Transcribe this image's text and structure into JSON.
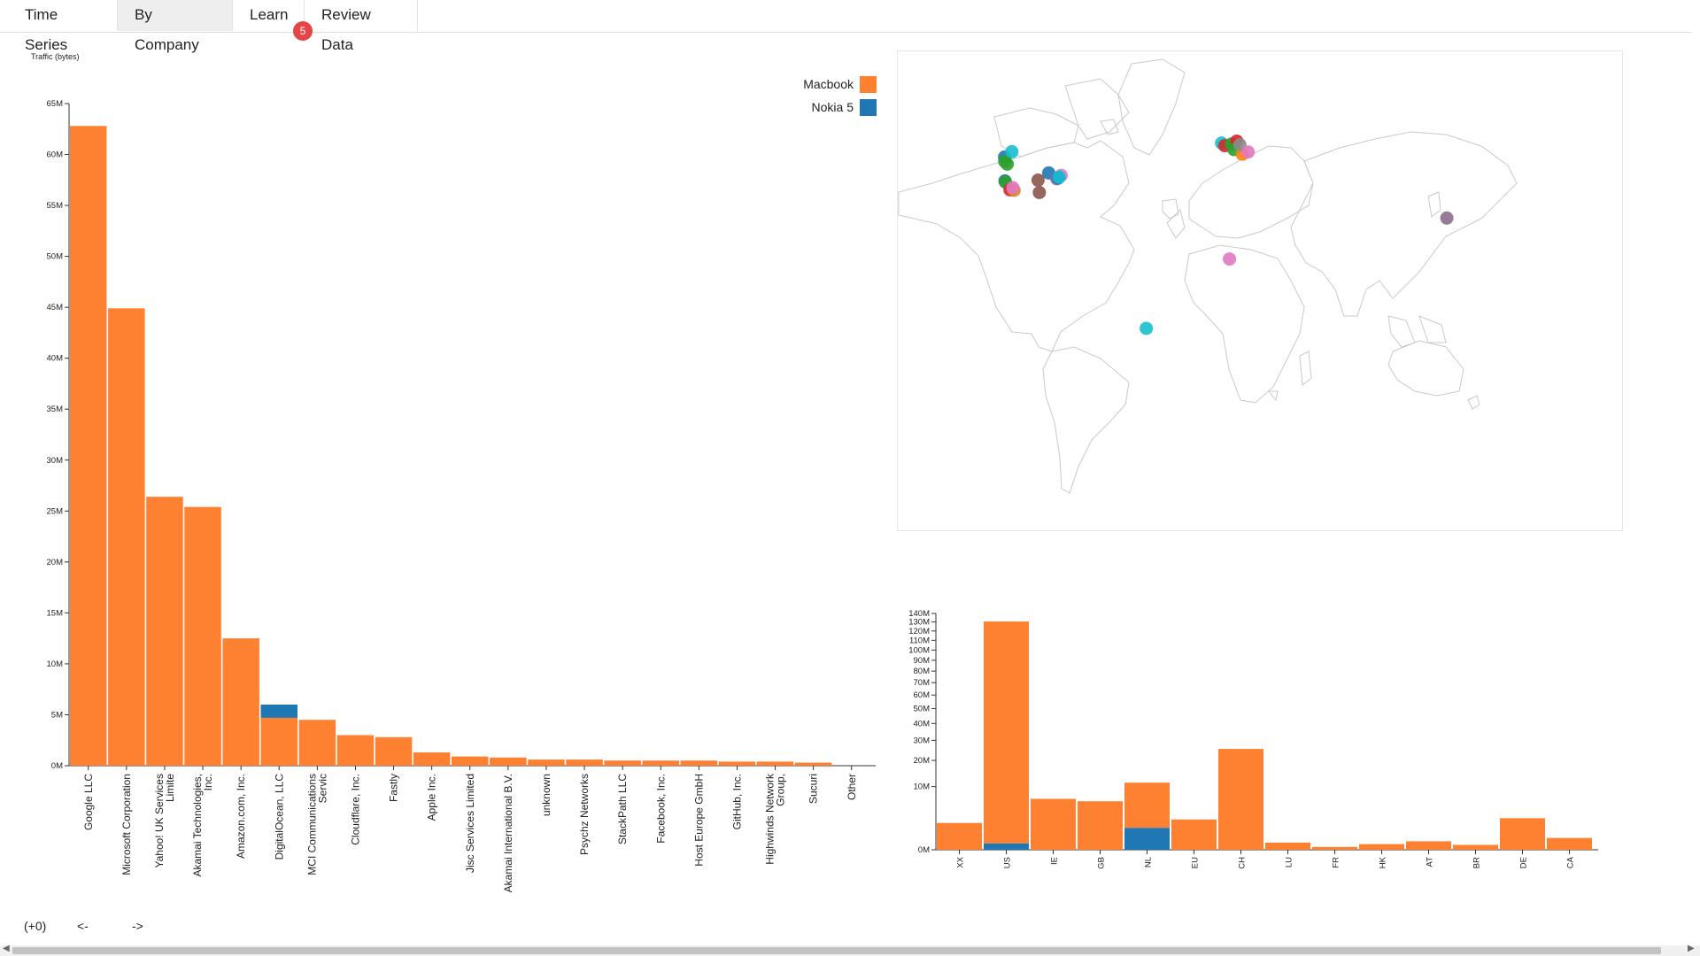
{
  "tabs": [
    {
      "label": "Time Series",
      "active": false
    },
    {
      "label": "By Company",
      "active": true
    },
    {
      "label": "Learn",
      "active": false
    },
    {
      "label": "Review Data",
      "active": false
    }
  ],
  "learn_badge": "5",
  "colors": {
    "macbook": "#fd8130",
    "nokia": "#1f77b4"
  },
  "legend": [
    {
      "label": "Macbook",
      "color": "#fd8130"
    },
    {
      "label": "Nokia 5",
      "color": "#1f77b4"
    }
  ],
  "nav": {
    "offset": "(+0)",
    "prev": "<-",
    "next": "->"
  },
  "chart_data": [
    {
      "type": "bar",
      "ylabel": "Traffic (bytes)",
      "ylim": [
        0,
        65000000
      ],
      "yticks": [
        0,
        5000000,
        10000000,
        15000000,
        20000000,
        25000000,
        30000000,
        35000000,
        40000000,
        45000000,
        50000000,
        55000000,
        60000000,
        65000000
      ],
      "ytick_labels": [
        "0M",
        "5M",
        "10M",
        "15M",
        "20M",
        "25M",
        "30M",
        "35M",
        "40M",
        "45M",
        "50M",
        "55M",
        "60M",
        "65M"
      ],
      "categories": [
        [
          "Google LLC"
        ],
        [
          "Microsoft Corporation"
        ],
        [
          "Yahoo! UK Services",
          "Limite"
        ],
        [
          "Akamai Technologies,",
          "Inc."
        ],
        [
          "Amazon.com, Inc."
        ],
        [
          "DigitalOcean, LLC"
        ],
        [
          "MCI Communications",
          "Servic"
        ],
        [
          "Cloudflare, Inc."
        ],
        [
          "Fastly"
        ],
        [
          "Apple Inc."
        ],
        [
          "Jisc Services Limited"
        ],
        [
          "Akamai International B.V."
        ],
        [
          "unknown"
        ],
        [
          "Psychz Networks"
        ],
        [
          "StackPath LLC"
        ],
        [
          "Facebook, Inc."
        ],
        [
          "Host Europe GmbH"
        ],
        [
          "GitHub, Inc."
        ],
        [
          "Highwinds Network",
          "Group,"
        ],
        [
          "Sucuri"
        ],
        [
          "Other"
        ]
      ],
      "series": [
        {
          "name": "Macbook",
          "values": [
            62800000,
            44900000,
            26400000,
            25400000,
            12500000,
            4700000,
            4500000,
            3000000,
            2800000,
            1300000,
            900000,
            800000,
            600000,
            600000,
            500000,
            500000,
            500000,
            400000,
            400000,
            300000,
            0
          ]
        },
        {
          "name": "Nokia 5",
          "values": [
            0,
            0,
            0,
            0,
            0,
            1300000,
            0,
            0,
            0,
            0,
            0,
            0,
            0,
            0,
            0,
            0,
            0,
            0,
            0,
            0,
            0
          ]
        }
      ]
    },
    {
      "type": "bar",
      "scale": "sqrt",
      "ylim": [
        0,
        140000000
      ],
      "yticks": [
        0,
        10000000,
        20000000,
        30000000,
        40000000,
        50000000,
        60000000,
        70000000,
        80000000,
        90000000,
        100000000,
        110000000,
        120000000,
        130000000,
        140000000
      ],
      "ytick_labels": [
        "0M",
        "10M",
        "20M",
        "30M",
        "40M",
        "50M",
        "60M",
        "70M",
        "80M",
        "90M",
        "100M",
        "110M",
        "120M",
        "130M",
        "140M"
      ],
      "categories": [
        "XX",
        "US",
        "IE",
        "GB",
        "NL",
        "EU",
        "CH",
        "LU",
        "FR",
        "HK",
        "AT",
        "BR",
        "DE",
        "CA"
      ],
      "series": [
        {
          "name": "Macbook",
          "values": [
            1800000,
            130500000,
            6500000,
            5900000,
            10100000,
            2300000,
            25500000,
            130000,
            20000,
            80000,
            180000,
            60000,
            2500000,
            350000
          ]
        },
        {
          "name": "Nokia 5",
          "values": [
            0,
            100000,
            0,
            0,
            1200000,
            0,
            0,
            0,
            0,
            0,
            0,
            0,
            0,
            0
          ]
        }
      ]
    }
  ],
  "map": {
    "points": [
      {
        "lon": -122.4,
        "lat": 47.6,
        "color": "#1f77b4"
      },
      {
        "lon": -122.3,
        "lat": 45.8,
        "color": "#2ca02c"
      },
      {
        "lon": -121.0,
        "lat": 44.7,
        "color": "#2ca02c"
      },
      {
        "lon": -118.5,
        "lat": 49.8,
        "color": "#17becf"
      },
      {
        "lon": -122.2,
        "lat": 37.7,
        "color": "#1f77b4"
      },
      {
        "lon": -121.9,
        "lat": 37.2,
        "color": "#2ca02c"
      },
      {
        "lon": -119.5,
        "lat": 34.0,
        "color": "#d62728"
      },
      {
        "lon": -117.3,
        "lat": 33.8,
        "color": "#d68a1a"
      },
      {
        "lon": -118.0,
        "lat": 34.9,
        "color": "#e377c2"
      },
      {
        "lon": -104.5,
        "lat": 38.0,
        "color": "#8c564b"
      },
      {
        "lon": -103.8,
        "lat": 32.9,
        "color": "#8c564b"
      },
      {
        "lon": -98.8,
        "lat": 41.0,
        "color": "#1f77b4"
      },
      {
        "lon": -94.5,
        "lat": 38.6,
        "color": "#9467bd"
      },
      {
        "lon": -92.1,
        "lat": 40.0,
        "color": "#e377c2"
      },
      {
        "lon": -93.7,
        "lat": 38.9,
        "color": "#1f77b4"
      },
      {
        "lon": -93.2,
        "lat": 39.3,
        "color": "#17becf"
      },
      {
        "lon": -6.3,
        "lat": 53.4,
        "color": "#17becf"
      },
      {
        "lon": -4.6,
        "lat": 52.3,
        "color": "#d62728"
      },
      {
        "lon": -1.0,
        "lat": 53.0,
        "color": "#2ca02c"
      },
      {
        "lon": 1.8,
        "lat": 54.2,
        "color": "#d62728"
      },
      {
        "lon": 0.3,
        "lat": 50.7,
        "color": "#2ca02c"
      },
      {
        "lon": 4.8,
        "lat": 48.8,
        "color": "#ff7f0e"
      },
      {
        "lon": 3.5,
        "lat": 52.7,
        "color": "#8c8c8c"
      },
      {
        "lon": 7.9,
        "lat": 49.7,
        "color": "#e377c2"
      },
      {
        "lon": 114.2,
        "lat": 22.3,
        "color": "#8c6d8c"
      },
      {
        "lon": -2.1,
        "lat": 5.3,
        "color": "#e377c2"
      },
      {
        "lon": -46.6,
        "lat": -23.5,
        "color": "#17becf"
      }
    ]
  }
}
